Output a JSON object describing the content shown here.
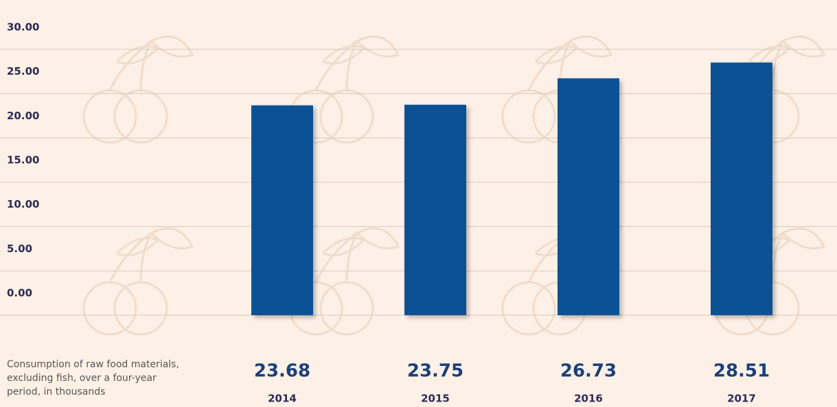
{
  "chart_data": {
    "type": "bar",
    "caption": "Consumption of raw food materials, excluding fish, over a four-year period, in thousands",
    "categories": [
      "2014",
      "2015",
      "2016",
      "2017"
    ],
    "values": [
      23.68,
      23.75,
      26.73,
      28.51
    ],
    "color": "#0d5195",
    "ylim": [
      0,
      30
    ],
    "yticks": [
      {
        "value": 0,
        "label": "0.00"
      },
      {
        "value": 5,
        "label": "5.00"
      },
      {
        "value": 10,
        "label": "10.00"
      },
      {
        "value": 15,
        "label": "15.00"
      },
      {
        "value": 20,
        "label": "20.00"
      },
      {
        "value": 25,
        "label": "25.00"
      },
      {
        "value": 30,
        "label": "30.00"
      }
    ],
    "grid": true
  }
}
